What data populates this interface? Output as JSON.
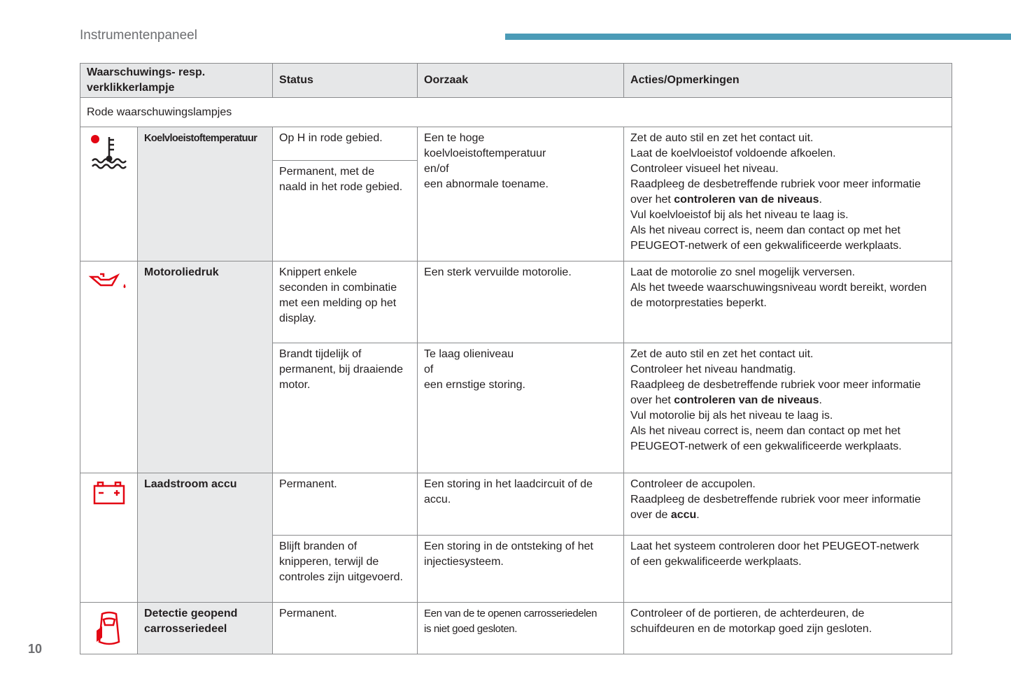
{
  "header": {
    "title": "Instrumentenpaneel"
  },
  "page_number": "10",
  "table": {
    "columns": [
      [
        "Waarschuwings- resp.",
        "verklikkerlampje"
      ],
      [
        "Status"
      ],
      [
        "Oorzaak"
      ],
      [
        "Acties/Opmerkingen"
      ]
    ],
    "section": "Rode waarschuwingslampjes",
    "lamps": [
      {
        "name": "Koelvloeistoftemperatuur",
        "rows": [
          {
            "status": [
              [
                "Op H in rode gebied."
              ],
              [
                "Permanent, met de",
                "naald in het rode gebied."
              ]
            ],
            "cause": [
              "Een te hoge",
              "koelvloeistoftemperatuur",
              "en/of",
              "een abnormale toename."
            ],
            "action": [
              "Zet de auto stil en zet het contact uit.",
              "Laat de koelvloeistof voldoende afkoelen.",
              "Controleer visueel het niveau.",
              "Raadpleeg de desbetreffende rubriek voor meer informatie",
              [
                "over het ",
                {
                  "text": "controleren van de niveaus",
                  "bold": true
                },
                "."
              ],
              "Vul koelvloeistof bij als het niveau te laag is.",
              "Als het niveau correct is, neem dan contact op met het",
              "PEUGEOT-netwerk of een gekwalificeerde werkplaats."
            ]
          }
        ]
      },
      {
        "name": "Motoroliedruk",
        "rows": [
          {
            "status": [
              [
                "Knippert enkele",
                "seconden in combinatie",
                "met een melding op het",
                "display."
              ]
            ],
            "cause": [
              "Een sterk vervuilde motorolie."
            ],
            "action": [
              "Laat de motorolie zo snel mogelijk verversen.",
              "Als het tweede waarschuwingsniveau wordt bereikt, worden",
              "de motorprestaties beperkt."
            ]
          },
          {
            "status": [
              [
                "Brandt tijdelijk of",
                "permanent, bij draaiende",
                "motor."
              ]
            ],
            "cause": [
              "Te laag olieniveau",
              "of",
              "een ernstige storing."
            ],
            "action": [
              "Zet de auto stil en zet het contact uit.",
              "Controleer het niveau handmatig.",
              "Raadpleeg de desbetreffende rubriek voor meer informatie",
              [
                "over het ",
                {
                  "text": "controleren van de niveaus",
                  "bold": true
                },
                "."
              ],
              "Vul motorolie bij als het niveau te laag is.",
              "Als het niveau correct is, neem dan contact op met het",
              "PEUGEOT-netwerk of een gekwalificeerde werkplaats."
            ]
          }
        ]
      },
      {
        "name": "Laadstroom accu",
        "rows": [
          {
            "status": [
              [
                "Permanent."
              ]
            ],
            "cause": [
              "Een storing in het laadcircuit of de",
              "accu."
            ],
            "action": [
              "Controleer de accupolen.",
              "Raadpleeg de desbetreffende rubriek voor meer informatie",
              [
                "over de ",
                {
                  "text": "accu",
                  "bold": true
                },
                "."
              ]
            ]
          },
          {
            "status": [
              [
                "Blijft branden of",
                "knipperen, terwijl de",
                "controles zijn uitgevoerd."
              ]
            ],
            "cause": [
              "Een storing in de ontsteking of het",
              "injectiesysteem."
            ],
            "action": [
              "Laat het systeem controleren door het PEUGEOT-netwerk",
              "of een gekwalificeerde werkplaats."
            ]
          }
        ]
      },
      {
        "name": "Detectie geopend carrosseriedeel",
        "rows": [
          {
            "status": [
              [
                "Permanent."
              ]
            ],
            "cause": [
              "Een van de te openen carrosseriedelen",
              "is niet goed gesloten."
            ],
            "action": [
              "Controleer of de portieren, de achterdeuren, de",
              "schuifdeuren en de motorkap goed zijn gesloten."
            ]
          }
        ]
      }
    ]
  }
}
